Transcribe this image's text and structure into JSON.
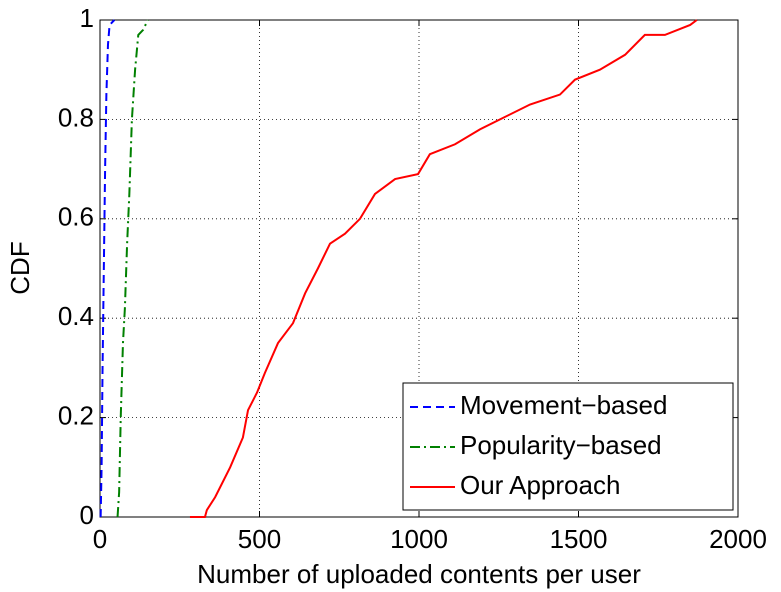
{
  "chart_data": {
    "type": "line",
    "xlabel": "Number of uploaded contents per user",
    "ylabel": "CDF",
    "xlim": [
      0,
      2000
    ],
    "xticks": [
      0,
      500,
      1000,
      1500,
      2000
    ],
    "ylim": [
      0,
      1
    ],
    "yticks": [
      0,
      0.2,
      0.4,
      0.6,
      0.8,
      1
    ],
    "grid": true,
    "legend": "lower right",
    "series": [
      {
        "name": "Movement−based",
        "color": "#0000ff",
        "linestyle": "--",
        "x": [
          2,
          5,
          8,
          12,
          16,
          20,
          25,
          30,
          45
        ],
        "values": [
          0,
          0.1,
          0.3,
          0.5,
          0.7,
          0.85,
          0.95,
          0.99,
          1
        ]
      },
      {
        "name": "Popularity−based",
        "color": "#008000",
        "linestyle": "-.",
        "x": [
          55,
          60,
          65,
          72,
          78,
          85,
          92,
          100,
          110,
          120,
          135,
          150
        ],
        "values": [
          0,
          0.05,
          0.2,
          0.35,
          0.42,
          0.55,
          0.65,
          0.8,
          0.9,
          0.97,
          0.98,
          1
        ]
      },
      {
        "name": "Our Approach",
        "color": "#ff0000",
        "linestyle": "-",
        "x": [
          282,
          329,
          335,
          361,
          408,
          448,
          464,
          492,
          517,
          558,
          605,
          643,
          683,
          721,
          768,
          815,
          862,
          925,
          997,
          1034,
          1113,
          1191,
          1254,
          1348,
          1442,
          1489,
          1567,
          1646,
          1708,
          1771,
          1850,
          1871
        ],
        "values": [
          0,
          0,
          0.014,
          0.04,
          0.1,
          0.16,
          0.215,
          0.25,
          0.29,
          0.35,
          0.39,
          0.45,
          0.5,
          0.55,
          0.57,
          0.6,
          0.65,
          0.68,
          0.69,
          0.73,
          0.75,
          0.78,
          0.8,
          0.83,
          0.85,
          0.88,
          0.9,
          0.93,
          0.97,
          0.97,
          0.99,
          1
        ]
      }
    ]
  }
}
